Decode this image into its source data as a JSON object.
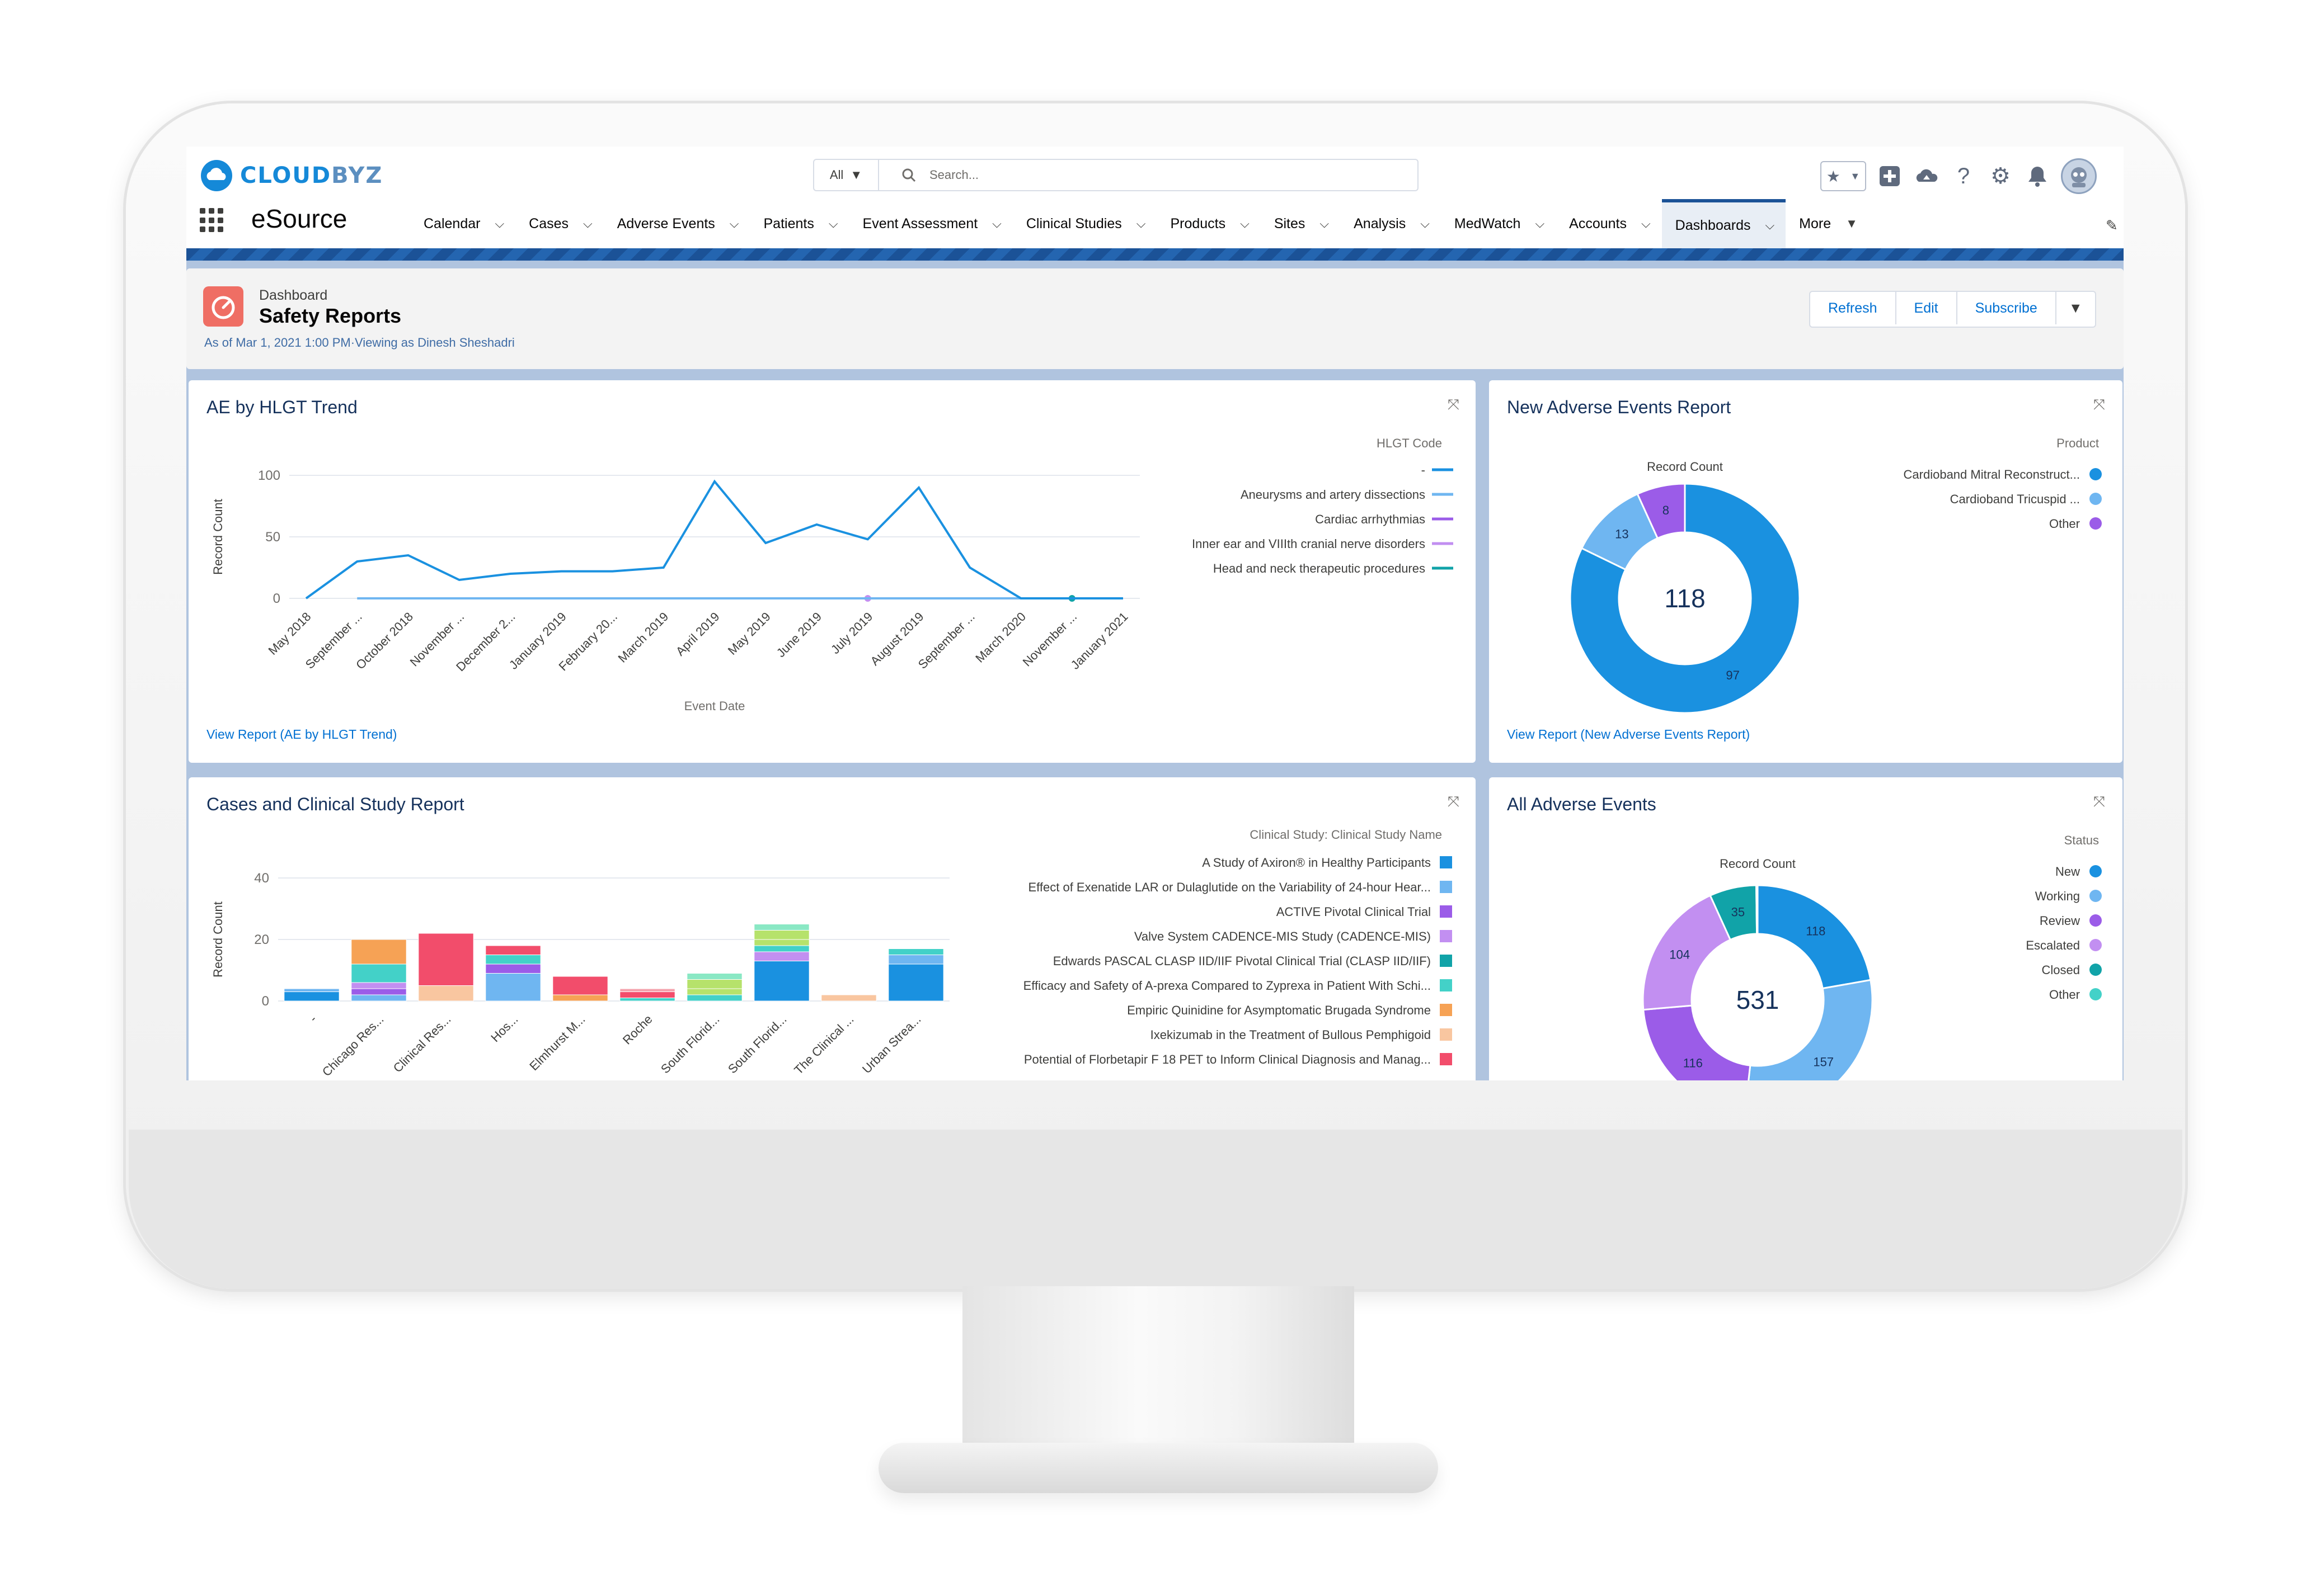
{
  "brand": {
    "logo_text_a": "CLOUD",
    "logo_text_b": "BYZ",
    "app_name": "eSource"
  },
  "search": {
    "scope": "All",
    "placeholder": "Search..."
  },
  "nav": {
    "items": [
      {
        "label": "Calendar"
      },
      {
        "label": "Cases"
      },
      {
        "label": "Adverse Events"
      },
      {
        "label": "Patients"
      },
      {
        "label": "Event Assessment"
      },
      {
        "label": "Clinical Studies"
      },
      {
        "label": "Products"
      },
      {
        "label": "Sites"
      },
      {
        "label": "Analysis"
      },
      {
        "label": "MedWatch"
      },
      {
        "label": "Accounts"
      },
      {
        "label": "Dashboards"
      },
      {
        "label": "More"
      }
    ],
    "active": "Dashboards"
  },
  "dashboard": {
    "subtitle": "Dashboard",
    "title": "Safety Reports",
    "meta": "As of Mar 1, 2021 1:00 PM·Viewing as Dinesh Sheshadri",
    "buttons": {
      "refresh": "Refresh",
      "edit": "Edit",
      "subscribe": "Subscribe"
    }
  },
  "colors": {
    "brand": "#1589d8",
    "nav_active": "#1b5297",
    "dash_icon": "#ef6e64",
    "link": "#0070d2"
  },
  "cards": {
    "ae_trend": {
      "title": "AE by HLGT Trend",
      "link": "View Report (AE by HLGT Trend)"
    },
    "new_ae": {
      "title": "New Adverse Events Report",
      "link": "View Report (New Adverse Events Report)"
    },
    "cases_study": {
      "title": "Cases and Clinical Study Report"
    },
    "all_ae": {
      "title": "All Adverse Events"
    }
  },
  "chart_data": [
    {
      "type": "line",
      "title": "AE by HLGT Trend",
      "xlabel": "Event Date",
      "ylabel": "Record Count",
      "ylim": [
        0,
        100
      ],
      "yticks": [
        0,
        50,
        100
      ],
      "legend_title": "HLGT Code",
      "categories": [
        "May 2018",
        "September ...",
        "October 2018",
        "November ...",
        "December 2...",
        "January 2019",
        "February 20...",
        "March 2019",
        "April 2019",
        "May 2019",
        "June 2019",
        "July 2019",
        "August 2019",
        "September ...",
        "March 2020",
        "November ...",
        "January 2021"
      ],
      "series": [
        {
          "name": "-",
          "color": "#1a91e0",
          "values": [
            0,
            30,
            35,
            15,
            20,
            22,
            22,
            25,
            95,
            45,
            60,
            48,
            90,
            25,
            0,
            0,
            0
          ]
        },
        {
          "name": "Aneurysms and artery dissections",
          "color": "#6fb6f1",
          "values": [
            null,
            0,
            0,
            0,
            0,
            0,
            0,
            0,
            0,
            0,
            0,
            0,
            0,
            0,
            0,
            0,
            0
          ]
        },
        {
          "name": "Cardiac arrhythmias",
          "color": "#9b5ce8",
          "values": [
            null,
            null,
            0,
            0,
            0,
            0,
            0,
            0,
            0,
            0,
            0,
            0,
            0,
            0,
            0,
            0,
            null
          ]
        },
        {
          "name": "Inner ear and VIIIth cranial nerve disorders",
          "color": "#c28ff1",
          "values": [
            null,
            null,
            null,
            null,
            null,
            null,
            null,
            null,
            null,
            null,
            null,
            0,
            null,
            null,
            null,
            null,
            null
          ]
        },
        {
          "name": "Head and neck therapeutic procedures",
          "color": "#11a3a8",
          "values": [
            null,
            null,
            null,
            null,
            null,
            null,
            null,
            null,
            null,
            null,
            null,
            null,
            null,
            null,
            null,
            0,
            null
          ]
        }
      ],
      "grid": true,
      "legend": "right"
    },
    {
      "type": "pie",
      "title": "New Adverse Events Report",
      "measure": "Record Count",
      "center_total": "118",
      "legend_title": "Product",
      "slices": [
        {
          "label": "Cardioband Mitral Reconstruct...",
          "value": 97,
          "color": "#1a91e0"
        },
        {
          "label": "Cardioband Tricuspid ...",
          "value": 13,
          "color": "#6fb6f1"
        },
        {
          "label": "Other",
          "value": 8,
          "color": "#9b5ce8"
        }
      ],
      "legend": "right"
    },
    {
      "type": "bar",
      "stacked": true,
      "title": "Cases and Clinical Study Report",
      "ylabel": "Record Count",
      "ylim": [
        0,
        40
      ],
      "yticks": [
        0,
        20,
        40
      ],
      "legend_title": "Clinical Study: Clinical Study Name",
      "categories": [
        "-",
        "Chicago Res...",
        "Clinical Res...",
        "Hos...",
        "Elmhurst M...",
        "Roche",
        "South Florid...",
        "South Florid...",
        "The Clinical ...",
        "Urban Strea..."
      ],
      "series": [
        {
          "name": "A Study of Axiron® in Healthy Participants",
          "color": "#1a91e0",
          "values": [
            3,
            0,
            0,
            0,
            0,
            0,
            0,
            13,
            0,
            12
          ]
        },
        {
          "name": "Effect of Exenatide LAR or Dulaglutide on the Variability of 24-hour Hear...",
          "color": "#6fb6f1",
          "values": [
            1,
            2,
            0,
            9,
            0,
            0,
            0,
            0,
            0,
            3
          ]
        },
        {
          "name": "ACTIVE Pivotal Clinical Trial",
          "color": "#9b5ce8",
          "values": [
            0,
            2,
            0,
            3,
            0,
            0,
            0,
            0,
            0,
            0
          ]
        },
        {
          "name": "Valve System CADENCE-MIS Study (CADENCE-MIS)",
          "color": "#c28ff1",
          "values": [
            0,
            2,
            0,
            0,
            0,
            0,
            0,
            3,
            0,
            0
          ]
        },
        {
          "name": "Edwards PASCAL CLASP IID/IIF Pivotal Clinical Trial (CLASP IID/IIF)",
          "color": "#11a3a8",
          "values": [
            0,
            0,
            0,
            0,
            0,
            0,
            0,
            0,
            0,
            0
          ]
        },
        {
          "name": "Efficacy and Safety of A-prexa Compared to Zyprexa in Patient With Schi...",
          "color": "#43d1c8",
          "values": [
            0,
            6,
            0,
            3,
            0,
            1,
            2,
            2,
            0,
            2
          ]
        },
        {
          "name": "Empiric Quinidine for Asymptomatic Brugada Syndrome",
          "color": "#f6a255",
          "values": [
            0,
            8,
            0,
            0,
            2,
            0,
            0,
            0,
            0,
            0
          ]
        },
        {
          "name": "Ixekizumab in the Treatment of Bullous Pemphigoid",
          "color": "#f9c6a0",
          "values": [
            0,
            0,
            5,
            0,
            0,
            0,
            0,
            0,
            2,
            0
          ]
        },
        {
          "name": "Potential of Florbetapir F 18 PET to Inform Clinical Diagnosis and Manag...",
          "color": "#f24d6b",
          "values": [
            0,
            0,
            17,
            3,
            6,
            2,
            0,
            0,
            0,
            0
          ]
        }
      ],
      "extra_segments": [
        {
          "category": "Roche",
          "value": 1,
          "color": "#f4a3ad"
        },
        {
          "category": "South Florid...",
          "value": 2,
          "color": "#b6e26b"
        },
        {
          "category": "South Florid...",
          "value": 3,
          "color": "#b6e26b"
        },
        {
          "category": "South Florid...",
          "value": 2,
          "color": "#8ae8c4"
        },
        {
          "category": "Chicago Res...",
          "value": 0,
          "color": "#ffffff"
        }
      ],
      "legend": "right"
    },
    {
      "type": "pie",
      "title": "All Adverse Events",
      "measure": "Record Count",
      "center_total": "531",
      "legend_title": "Status",
      "slices": [
        {
          "label": "New",
          "value": 118,
          "color": "#1a91e0"
        },
        {
          "label": "Working",
          "value": 157,
          "color": "#6fb6f1"
        },
        {
          "label": "Review",
          "value": 116,
          "color": "#9b5ce8"
        },
        {
          "label": "Escalated",
          "value": 104,
          "color": "#c28ff1"
        },
        {
          "label": "Closed",
          "value": 35,
          "color": "#11a3a8"
        },
        {
          "label": "Other",
          "value": 1,
          "color": "#43d1c8"
        }
      ],
      "legend": "right"
    }
  ]
}
